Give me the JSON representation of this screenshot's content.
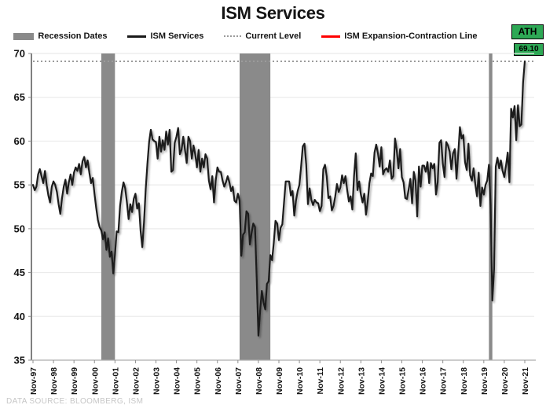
{
  "title": "ISM Services",
  "badges": {
    "ath_label": "ATH",
    "current_value": "69.10",
    "badge_color": "#2DA855"
  },
  "legend": [
    {
      "label": "Recession Dates",
      "swatch": "recession-band"
    },
    {
      "label": "ISM Services",
      "swatch": "black-line"
    },
    {
      "label": "Current Level",
      "swatch": "dotted-line"
    },
    {
      "label": "ISM Expansion-Contraction Line",
      "swatch": "red-line"
    }
  ],
  "footer": {
    "source": "DATA SOURCE: BLOOMBERG, ISM"
  },
  "chart_data": {
    "type": "line",
    "title": "ISM Services",
    "frequency": "monthly",
    "x_start": "Nov-1997",
    "x_end": "Nov-2021",
    "x_tick_labels": [
      "Nov-97",
      "Nov-98",
      "Nov-99",
      "Nov-00",
      "Nov-01",
      "Nov-02",
      "Nov-03",
      "Nov-04",
      "Nov-05",
      "Nov-06",
      "Nov-07",
      "Nov-08",
      "Nov-09",
      "Nov-10",
      "Nov-11",
      "Nov-12",
      "Nov-13",
      "Nov-14",
      "Nov-15",
      "Nov-16",
      "Nov-17",
      "Nov-18",
      "Nov-19",
      "Nov-20",
      "Nov-21"
    ],
    "months_per_tick": 12,
    "y_ticks": [
      35,
      40,
      45,
      50,
      55,
      60,
      65,
      70
    ],
    "ylim": [
      35,
      70
    ],
    "grid": "horizontal-light",
    "legend_position": "top",
    "current_level": 69.1,
    "all_time_high": 69.1,
    "expansion_contraction_level": 50,
    "recession_bands": [
      {
        "start": "Mar-2001",
        "end": "Nov-2001",
        "start_index": 40,
        "end_index": 48
      },
      {
        "start": "Dec-2007",
        "end": "Jun-2009",
        "start_index": 121,
        "end_index": 139
      },
      {
        "start": "Feb-2020",
        "end": "Apr-2020",
        "start_index": 267,
        "end_index": 269
      }
    ],
    "colors": {
      "series": "#1A1A1A",
      "recession": "#8A8A8A",
      "current_level": "#9B9B9B",
      "expansion_line": "#FF0000",
      "grid": "#EBEBEB",
      "y_axis": "#4A4A4A",
      "x_axis": "#ADADAD",
      "tick": "#8E8E8E",
      "label": "#141414"
    },
    "series": [
      {
        "name": "ISM Services",
        "values": [
          55.0,
          54.4,
          54.8,
          56.2,
          56.8,
          56.0,
          55.2,
          56.6,
          55.0,
          53.8,
          53.0,
          54.8,
          55.4,
          55.0,
          54.2,
          52.8,
          51.7,
          53.5,
          54.8,
          55.6,
          54.0,
          55.3,
          56.2,
          55.0,
          56.4,
          57.0,
          56.6,
          57.4,
          56.2,
          57.7,
          58.2,
          57.0,
          57.8,
          56.4,
          55.2,
          55.8,
          54.0,
          52.4,
          51.0,
          50.2,
          49.8,
          48.8,
          49.6,
          47.6,
          48.9,
          46.8,
          47.4,
          44.9,
          47.0,
          49.7,
          49.6,
          52.6,
          54.2,
          55.3,
          54.6,
          53.0,
          51.1,
          52.8,
          51.9,
          53.4,
          54.0,
          52.3,
          52.9,
          49.8,
          47.9,
          50.7,
          54.5,
          57.4,
          59.9,
          61.3,
          60.2,
          60.0,
          59.9,
          58.0,
          60.5,
          58.8,
          60.1,
          59.0,
          61.1,
          59.6,
          61.3,
          56.5,
          56.7,
          59.8,
          60.5,
          61.5,
          58.5,
          59.0,
          60.5,
          59.0,
          57.5,
          60.5,
          60.0,
          58.0,
          59.5,
          58.5,
          57.0,
          59.0,
          56.5,
          58.0,
          57.0,
          58.5,
          58.0,
          55.5,
          54.5,
          56.0,
          53.0,
          55.5,
          57.0,
          56.5,
          56.5,
          55.5,
          54.8,
          55.3,
          56.0,
          55.3,
          54.3,
          54.8,
          53.2,
          53.0,
          54.0,
          53.2,
          46.9,
          49.3,
          49.6,
          52.0,
          51.7,
          48.2,
          49.5,
          50.6,
          50.2,
          44.4,
          37.8,
          40.6,
          42.9,
          41.6,
          40.8,
          43.7,
          44.0,
          47.0,
          46.4,
          48.4,
          50.9,
          50.6,
          48.7,
          50.1,
          50.5,
          53.0,
          55.4,
          55.4,
          55.4,
          53.8,
          54.3,
          51.5,
          53.2,
          54.3,
          55.0,
          57.1,
          59.4,
          59.7,
          57.3,
          52.8,
          54.6,
          53.3,
          52.7,
          53.3,
          53.0,
          52.9,
          52.0,
          52.6,
          56.8,
          57.3,
          56.0,
          53.5,
          53.7,
          52.1,
          52.6,
          53.7,
          55.1,
          54.2,
          54.7,
          56.1,
          55.2,
          56.0,
          54.4,
          53.1,
          53.7,
          52.2,
          56.0,
          58.6,
          54.4,
          55.4,
          53.9,
          53.0,
          54.0,
          51.6,
          53.1,
          55.2,
          56.3,
          56.0,
          58.7,
          59.6,
          58.6,
          57.1,
          59.3,
          56.2,
          56.7,
          56.9,
          56.5,
          57.8,
          55.7,
          56.0,
          60.3,
          59.0,
          56.9,
          59.1,
          55.9,
          55.3,
          53.5,
          53.4,
          54.5,
          55.7,
          52.9,
          56.5,
          55.5,
          51.4,
          57.1,
          54.8,
          57.2,
          57.2,
          56.5,
          57.6,
          55.2,
          57.5,
          56.9,
          57.4,
          53.9,
          55.3,
          59.8,
          60.1,
          57.4,
          55.9,
          59.9,
          59.5,
          58.8,
          56.8,
          58.6,
          59.1,
          55.7,
          58.5,
          61.6,
          60.3,
          60.7,
          57.6,
          56.7,
          59.7,
          56.1,
          55.5,
          56.9,
          55.1,
          53.7,
          56.4,
          52.6,
          54.7,
          53.9,
          55.0,
          55.5,
          57.3,
          52.5,
          41.8,
          45.4,
          57.1,
          58.1,
          56.9,
          57.8,
          56.6,
          55.9,
          57.2,
          58.7,
          55.3,
          63.7,
          62.7,
          64.0,
          60.1,
          64.1,
          61.7,
          61.9,
          66.7,
          69.1
        ]
      }
    ]
  }
}
